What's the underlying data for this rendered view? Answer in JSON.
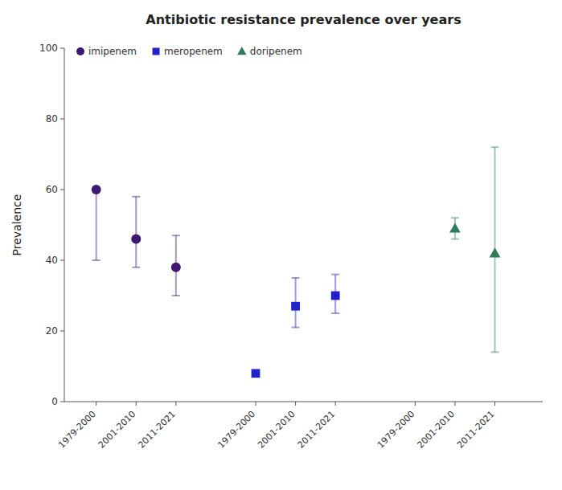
{
  "chart_data": {
    "type": "scatter",
    "title": "Antibiotic resistance prevalence over years",
    "y_label": "Prevalence",
    "xlim": [
      0.2,
      12.2
    ],
    "xticks": [
      {
        "value": 1,
        "label": "1979-2000"
      },
      {
        "value": 2,
        "label": "2001-2010"
      },
      {
        "value": 3,
        "label": "2011-2021"
      },
      {
        "value": 5,
        "label": "1979-2000"
      },
      {
        "value": 6,
        "label": "2001-2010"
      },
      {
        "value": 7,
        "label": "2011-2021"
      },
      {
        "value": 9,
        "label": "1979-2000"
      },
      {
        "value": 10,
        "label": "2001-2010"
      },
      {
        "value": 11,
        "label": "2011-2021"
      }
    ],
    "ylim": [
      0,
      100
    ],
    "yticks": [
      0,
      20,
      40,
      60,
      80,
      100
    ],
    "grid": false,
    "legend": "upper left",
    "series": [
      {
        "name": "imipenem",
        "color": "#3d1870",
        "marker": "circle",
        "x": [
          1,
          2,
          3
        ],
        "values": [
          60,
          46,
          38
        ],
        "error_low": [
          20,
          8,
          8
        ],
        "error_high": [
          0,
          12,
          9
        ]
      },
      {
        "name": "meropenem",
        "color": "#2222cc",
        "marker": "square",
        "x": [
          5,
          6,
          7
        ],
        "values": [
          8,
          27,
          30
        ],
        "error_low": [
          0,
          6,
          5
        ],
        "error_high": [
          0,
          8,
          6
        ]
      },
      {
        "name": "doripenem",
        "color": "#2e7d5a",
        "marker": "triangle",
        "x": [
          10,
          11
        ],
        "values": [
          49,
          42
        ],
        "error_low": [
          3,
          28
        ],
        "error_high": [
          3,
          30
        ]
      }
    ]
  }
}
